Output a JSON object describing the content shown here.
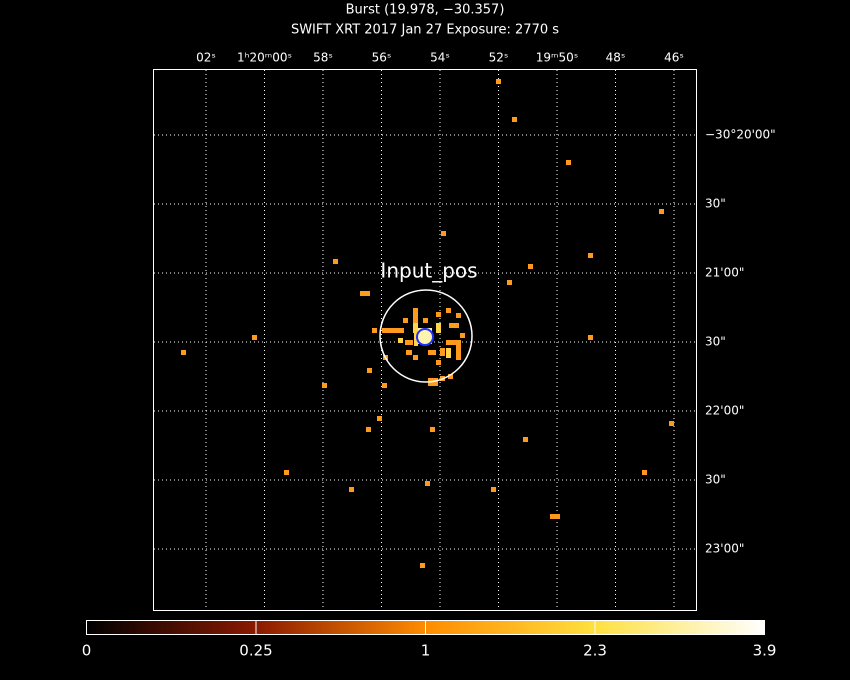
{
  "header": {
    "title": "Burst (19.978, −30.357)",
    "subtitle": "SWIFT XRT   2017 Jan 27    Exposure: 2770 s"
  },
  "top_axis": {
    "labels": [
      "02ˢ",
      "1ʰ20ᵐ00ˢ",
      "58ˢ",
      "56ˢ",
      "54ˢ",
      "52ˢ",
      "19ᵐ50ˢ",
      "48ˢ",
      "46ˢ"
    ]
  },
  "right_axis": {
    "labels": [
      "−30°20'00\"",
      "30\"",
      "21'00\"",
      "30\"",
      "22'00\"",
      "30\"",
      "23'00\""
    ]
  },
  "source_label": "Input_pos",
  "colorbar": {
    "labels": [
      "0",
      "0.25",
      "1",
      "2.3",
      "3.9"
    ]
  }
}
